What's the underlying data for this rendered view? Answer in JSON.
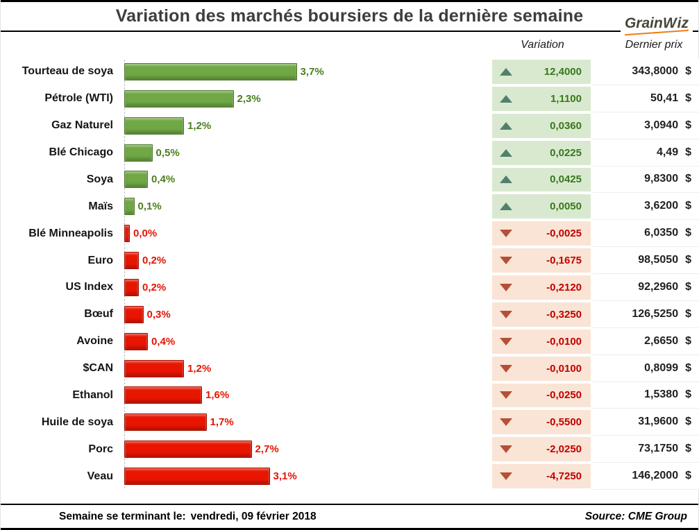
{
  "header": {
    "title": "Variation des marchés boursiers de la dernière semaine",
    "logo": {
      "grain": "Grain",
      "w": "W",
      "iz": "iz"
    }
  },
  "columns": {
    "variation": "Variation",
    "price": "Dernier prix"
  },
  "chart_data": {
    "type": "bar",
    "orientation": "horizontal",
    "value_unit": "%",
    "title": "Variation des marchés boursiers de la dernière semaine",
    "rows": [
      {
        "label": "Tourteau de soya",
        "pct": 3.7,
        "pct_label": "3,7%",
        "direction": "up",
        "variation": "12,4000",
        "price": "343,8000",
        "currency": "$"
      },
      {
        "label": "Pétrole (WTI)",
        "pct": 2.3,
        "pct_label": "2,3%",
        "direction": "up",
        "variation": "1,1100",
        "price": "50,41",
        "currency": "$"
      },
      {
        "label": "Gaz Naturel",
        "pct": 1.2,
        "pct_label": "1,2%",
        "direction": "up",
        "variation": "0,0360",
        "price": "3,0940",
        "currency": "$"
      },
      {
        "label": "Blé Chicago",
        "pct": 0.5,
        "pct_label": "0,5%",
        "direction": "up",
        "variation": "0,0225",
        "price": "4,49",
        "currency": "$"
      },
      {
        "label": "Soya",
        "pct": 0.4,
        "pct_label": "0,4%",
        "direction": "up",
        "variation": "0,0425",
        "price": "9,8300",
        "currency": "$"
      },
      {
        "label": "Maïs",
        "pct": 0.1,
        "pct_label": "0,1%",
        "direction": "up",
        "variation": "0,0050",
        "price": "3,6200",
        "currency": "$"
      },
      {
        "label": "Blé Minneapolis",
        "pct": 0.0,
        "pct_label": "0,0%",
        "direction": "down",
        "variation": "-0,0025",
        "price": "6,0350",
        "currency": "$"
      },
      {
        "label": "Euro",
        "pct": 0.2,
        "pct_label": "0,2%",
        "direction": "down",
        "variation": "-0,1675",
        "price": "98,5050",
        "currency": "$"
      },
      {
        "label": "US Index",
        "pct": 0.2,
        "pct_label": "0,2%",
        "direction": "down",
        "variation": "-0,2120",
        "price": "92,2960",
        "currency": "$"
      },
      {
        "label": "Bœuf",
        "pct": 0.3,
        "pct_label": "0,3%",
        "direction": "down",
        "variation": "-0,3250",
        "price": "126,5250",
        "currency": "$"
      },
      {
        "label": "Avoine",
        "pct": 0.4,
        "pct_label": "0,4%",
        "direction": "down",
        "variation": "-0,0100",
        "price": "2,6650",
        "currency": "$"
      },
      {
        "label": "$CAN",
        "pct": 1.2,
        "pct_label": "1,2%",
        "direction": "down",
        "variation": "-0,0100",
        "price": "0,8099",
        "currency": "$"
      },
      {
        "label": "Ethanol",
        "pct": 1.6,
        "pct_label": "1,6%",
        "direction": "down",
        "variation": "-0,0250",
        "price": "1,5380",
        "currency": "$"
      },
      {
        "label": "Huile de soya",
        "pct": 1.7,
        "pct_label": "1,7%",
        "direction": "down",
        "variation": "-0,5500",
        "price": "31,9600",
        "currency": "$"
      },
      {
        "label": "Porc",
        "pct": 2.7,
        "pct_label": "2,7%",
        "direction": "down",
        "variation": "-2,0250",
        "price": "73,1750",
        "currency": "$"
      },
      {
        "label": "Veau",
        "pct": 3.1,
        "pct_label": "3,1%",
        "direction": "down",
        "variation": "-4,7250",
        "price": "146,2000",
        "currency": "$"
      }
    ],
    "colors": {
      "positive_bar": "#6fa844",
      "negative_bar": "#e81500",
      "positive_bg": "#d9e9d0",
      "negative_bg": "#fae4d5",
      "positive_text": "#37781b",
      "negative_text": "#c00000",
      "up_triangle": "#53806d",
      "down_triangle": "#b35039",
      "logo_accent": "#ee7d11"
    }
  },
  "footer": {
    "label": "Semaine se terminant le:",
    "date": "vendredi, 09 février 2018",
    "source": "Source: CME Group"
  }
}
